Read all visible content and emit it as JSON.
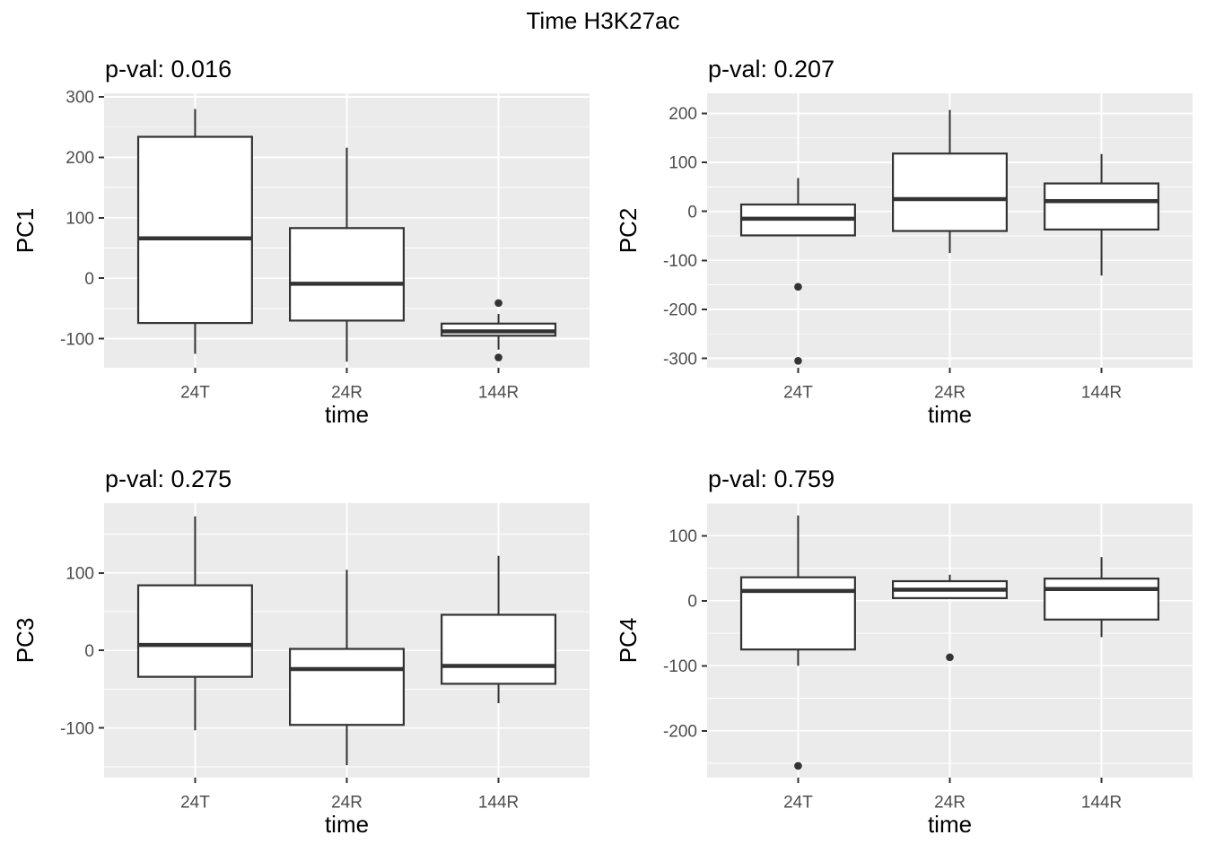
{
  "title": "Time H3K27ac",
  "style": {
    "figure_bg": "#FFFFFF",
    "panel_bg": "#EBEBEB",
    "grid_color": "#FFFFFF",
    "box_stroke": "#333333",
    "box_fill": "#FFFFFF",
    "tick_label_color": "#4D4D4D",
    "title_color": "#000000"
  },
  "chart_data": [
    {
      "type": "boxplot",
      "title": "p-val: 0.016",
      "p_value": "0.016",
      "ylabel": "PC1",
      "xlabel": "time",
      "categories": [
        "24T",
        "24R",
        "144R"
      ],
      "ylim": [
        -148,
        306
      ],
      "yticks": [
        300,
        200,
        100,
        0,
        -100
      ],
      "grid": true,
      "legend": "none",
      "boxes": [
        {
          "category": "24T",
          "low": -125,
          "q1": -74,
          "median": 66,
          "q3": 234,
          "high": 280,
          "outliers": []
        },
        {
          "category": "24R",
          "low": -138,
          "q1": -70,
          "median": -9,
          "q3": 83,
          "high": 216,
          "outliers": []
        },
        {
          "category": "144R",
          "low": -118,
          "q1": -95,
          "median": -88,
          "q3": -75,
          "high": -59,
          "outliers": [
            -41,
            -131
          ]
        }
      ]
    },
    {
      "type": "boxplot",
      "title": "p-val: 0.207",
      "p_value": "0.207",
      "ylabel": "PC2",
      "xlabel": "time",
      "categories": [
        "24T",
        "24R",
        "144R"
      ],
      "ylim": [
        -319,
        241
      ],
      "yticks": [
        200,
        100,
        0,
        -100,
        -200,
        -300
      ],
      "grid": true,
      "legend": "none",
      "boxes": [
        {
          "category": "24T",
          "low": -49,
          "q1": -49,
          "median": -15,
          "q3": 14,
          "high": 68,
          "outliers": [
            -154,
            -305
          ]
        },
        {
          "category": "24R",
          "low": -85,
          "q1": -40,
          "median": 25,
          "q3": 118,
          "high": 207,
          "outliers": []
        },
        {
          "category": "144R",
          "low": -131,
          "q1": -37,
          "median": 21,
          "q3": 57,
          "high": 117,
          "outliers": []
        }
      ]
    },
    {
      "type": "boxplot",
      "title": "p-val: 0.275",
      "p_value": "0.275",
      "ylabel": "PC3",
      "xlabel": "time",
      "categories": [
        "24T",
        "24R",
        "144R"
      ],
      "ylim": [
        -164,
        190
      ],
      "yticks": [
        100,
        0,
        -100
      ],
      "grid": true,
      "legend": "none",
      "boxes": [
        {
          "category": "24T",
          "low": -103,
          "q1": -34,
          "median": 7,
          "q3": 84,
          "high": 173,
          "outliers": []
        },
        {
          "category": "24R",
          "low": -148,
          "q1": -96,
          "median": -24,
          "q3": 2,
          "high": 104,
          "outliers": []
        },
        {
          "category": "144R",
          "low": -68,
          "q1": -43,
          "median": -20,
          "q3": 46,
          "high": 122,
          "outliers": []
        }
      ]
    },
    {
      "type": "boxplot",
      "title": "p-val: 0.759",
      "p_value": "0.759",
      "ylabel": "PC4",
      "xlabel": "time",
      "categories": [
        "24T",
        "24R",
        "144R"
      ],
      "ylim": [
        -272,
        150
      ],
      "yticks": [
        100,
        0,
        -100,
        -200
      ],
      "grid": true,
      "legend": "none",
      "boxes": [
        {
          "category": "24T",
          "low": -100,
          "q1": -75,
          "median": 15,
          "q3": 36,
          "high": 131,
          "outliers": [
            -254
          ]
        },
        {
          "category": "24R",
          "low": 4,
          "q1": 4,
          "median": 17,
          "q3": 30,
          "high": 40,
          "outliers": [
            -87
          ]
        },
        {
          "category": "144R",
          "low": -56,
          "q1": -29,
          "median": 18,
          "q3": 34,
          "high": 67,
          "outliers": []
        }
      ]
    }
  ]
}
